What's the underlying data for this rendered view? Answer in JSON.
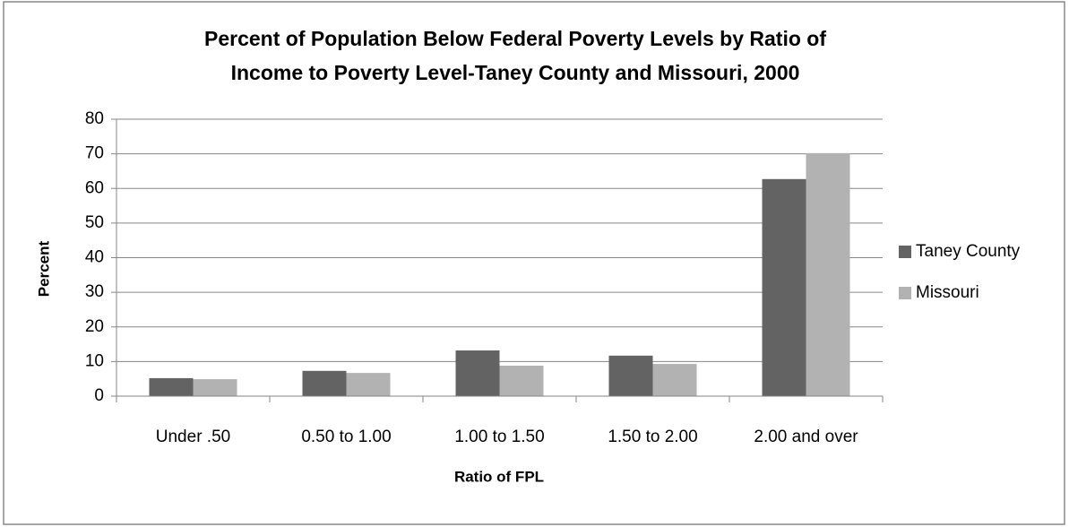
{
  "chart_data": {
    "type": "bar",
    "title": [
      "Percent of Population Below Federal Poverty Levels by Ratio of",
      "Income to Poverty Level-Taney County and Missouri, 2000"
    ],
    "x_label": "Ratio of FPL",
    "y_label": "Percent",
    "categories": [
      "Under .50",
      "0.50 to 1.00",
      "1.00 to 1.50",
      "1.50 to 2.00",
      "2.00 and over"
    ],
    "series": [
      {
        "name": "Taney County",
        "color": "#636363",
        "values": [
          5.2,
          7.3,
          13.2,
          11.7,
          62.7
        ]
      },
      {
        "name": "Missouri",
        "color": "#b2b2b2",
        "values": [
          4.9,
          6.7,
          8.8,
          9.3,
          70.2
        ]
      }
    ],
    "ylim": [
      0,
      80
    ],
    "yticks": [
      0,
      10,
      20,
      30,
      40,
      50,
      60,
      70,
      80
    ],
    "grid": true,
    "legend": "right"
  }
}
